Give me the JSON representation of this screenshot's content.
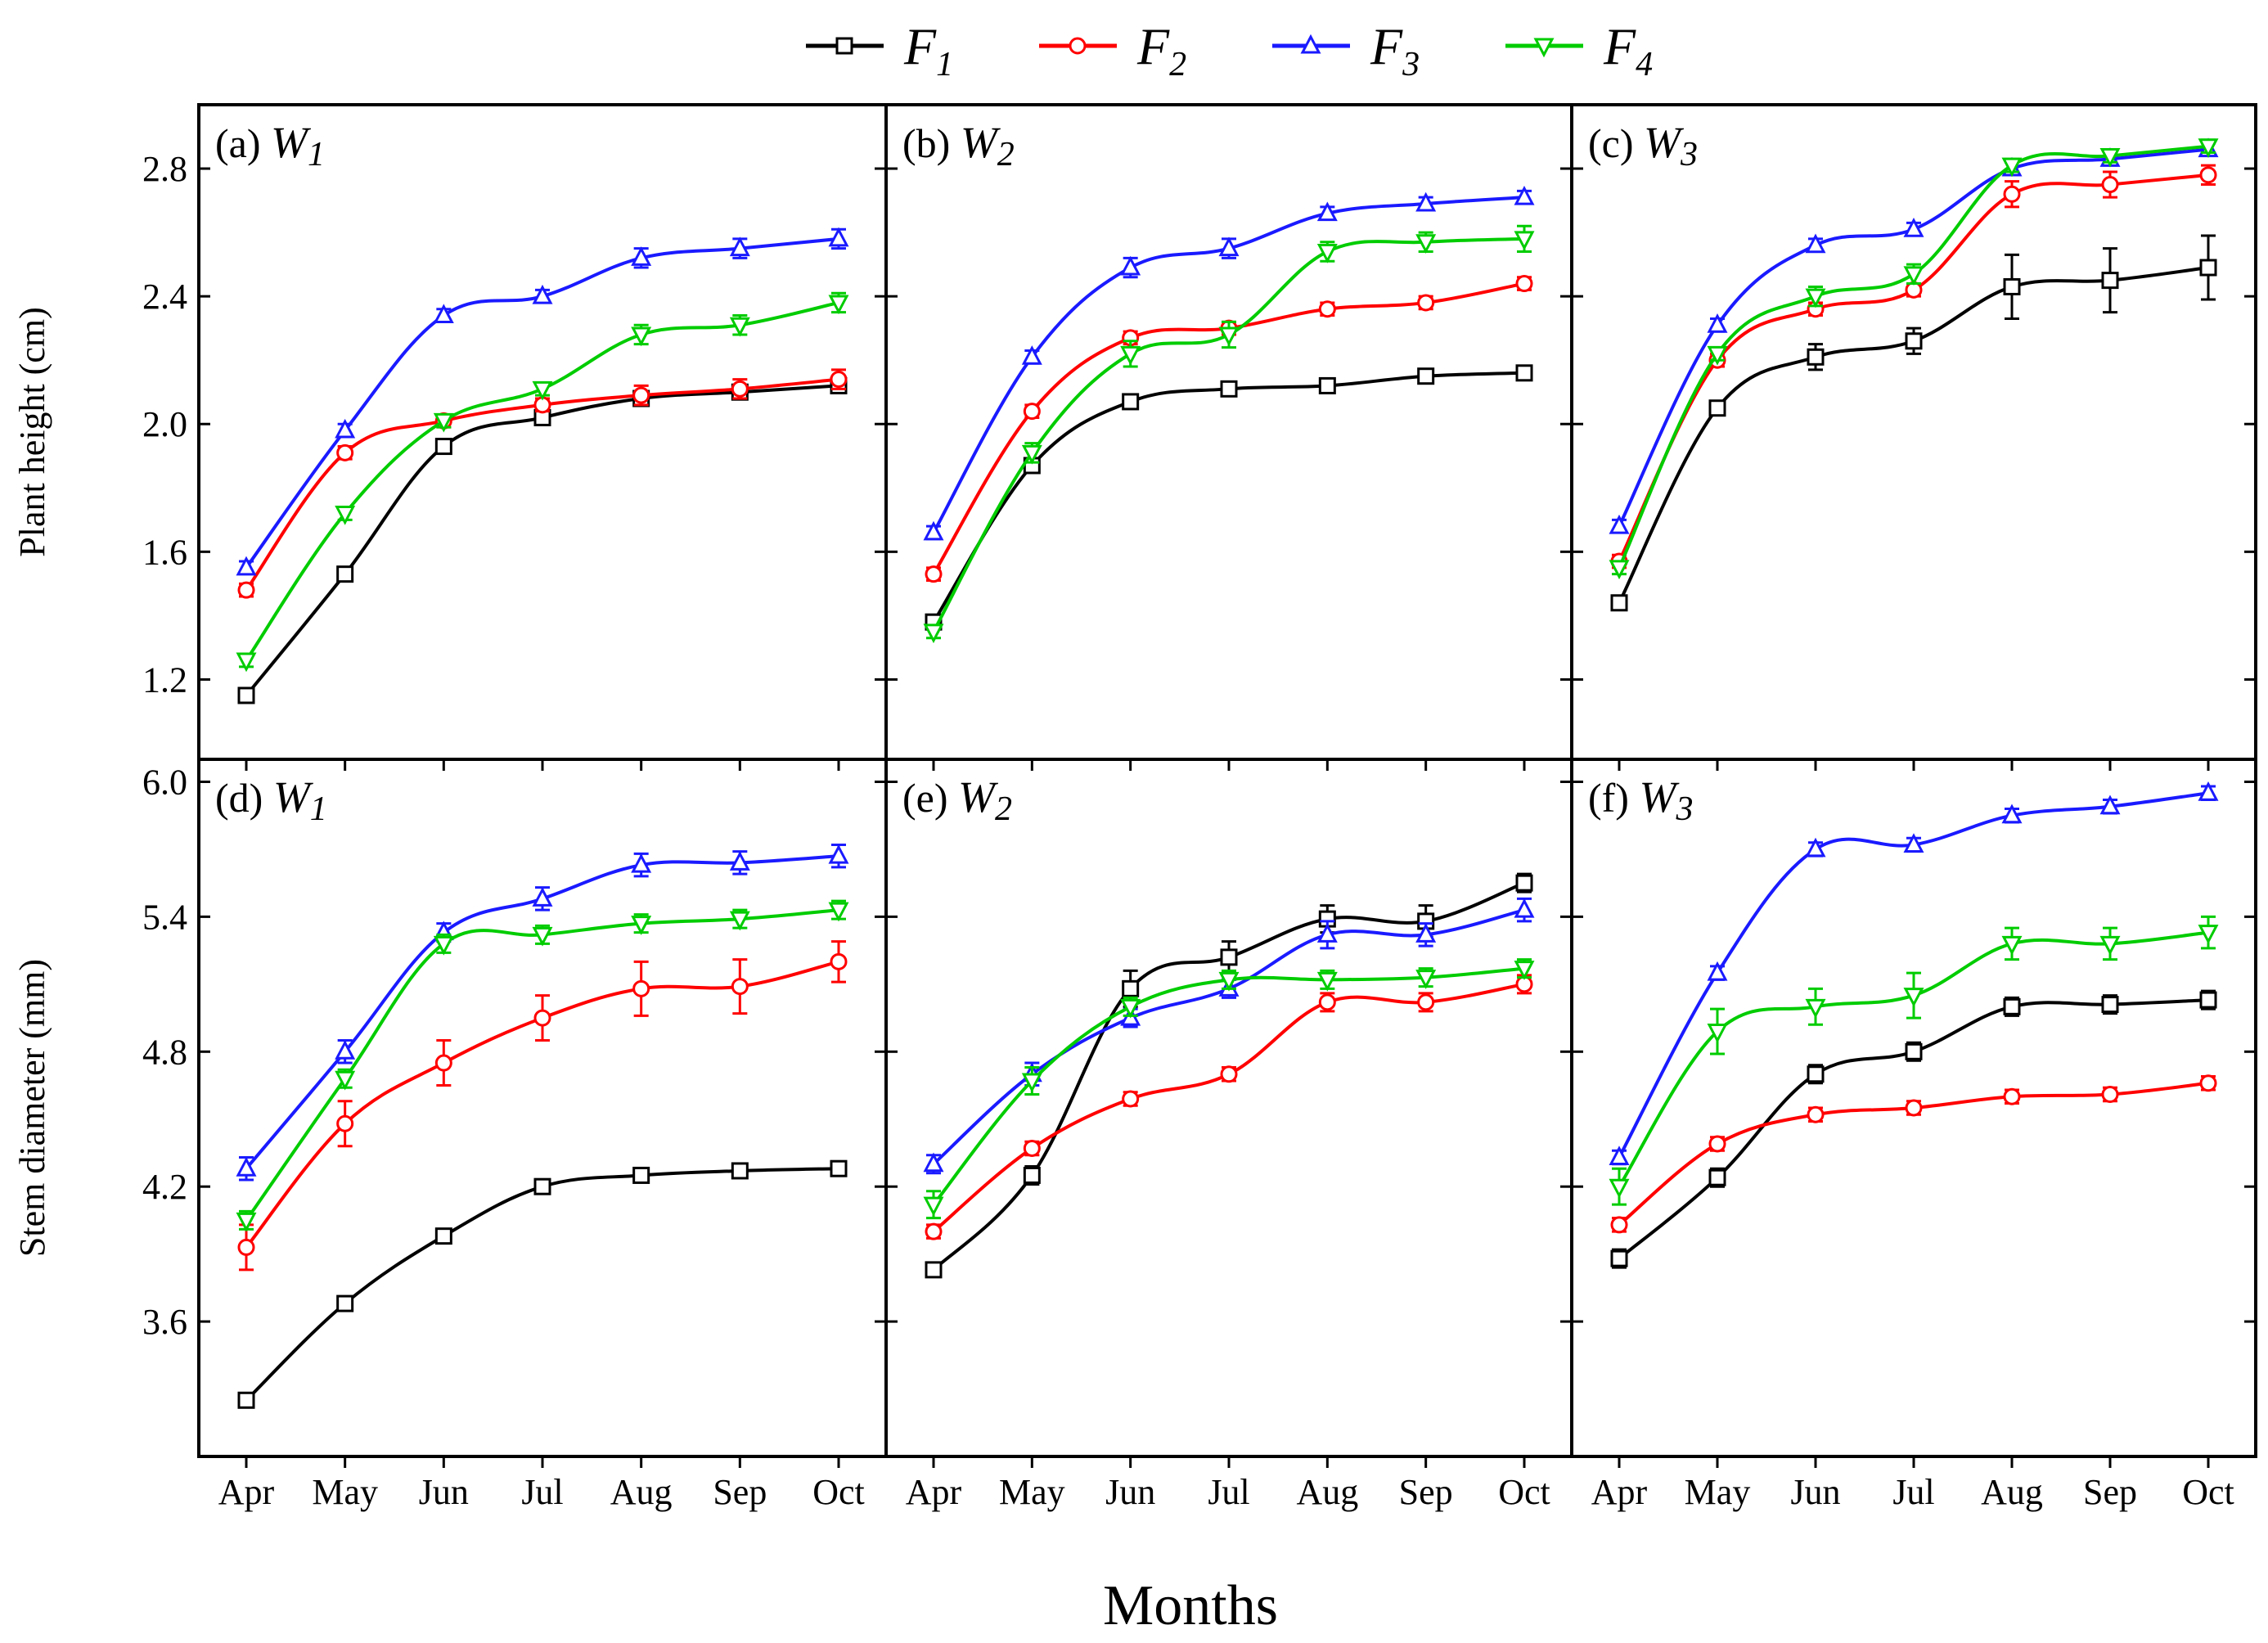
{
  "legend": [
    {
      "label": "F",
      "sub": "1",
      "color": "#000000",
      "marker": "square"
    },
    {
      "label": "F",
      "sub": "2",
      "color": "#ff0000",
      "marker": "circle"
    },
    {
      "label": "F",
      "sub": "3",
      "color": "#1a1aff",
      "marker": "triangle-up"
    },
    {
      "label": "F",
      "sub": "4",
      "color": "#00cc00",
      "marker": "triangle-down"
    }
  ],
  "x_axis_title": "Months",
  "chart_data": [
    {
      "type": "line",
      "panel": "(a)",
      "w": "W",
      "wsub": "1",
      "ylabel": "Plant height (cm)",
      "ylim": [
        0.95,
        3.0
      ],
      "yticks": [
        "1.2",
        "1.6",
        "2.0",
        "2.4",
        "2.8"
      ],
      "categories": [
        "Apr",
        "May",
        "Jun",
        "Jul",
        "Aug",
        "Sep",
        "Oct"
      ],
      "series": [
        {
          "name": "F1",
          "values": [
            1.15,
            1.53,
            1.93,
            2.02,
            2.08,
            2.1,
            2.12
          ],
          "errors": [
            0.02,
            0.02,
            0.02,
            0.02,
            0.02,
            0.02,
            0.02
          ]
        },
        {
          "name": "F2",
          "values": [
            1.48,
            1.91,
            2.01,
            2.06,
            2.09,
            2.11,
            2.14
          ],
          "errors": [
            0.02,
            0.02,
            0.02,
            0.02,
            0.03,
            0.03,
            0.03
          ]
        },
        {
          "name": "F3",
          "values": [
            1.55,
            1.98,
            2.34,
            2.4,
            2.52,
            2.55,
            2.58
          ],
          "errors": [
            0.02,
            0.02,
            0.02,
            0.02,
            0.03,
            0.03,
            0.03
          ]
        },
        {
          "name": "F4",
          "values": [
            1.26,
            1.72,
            2.01,
            2.11,
            2.28,
            2.31,
            2.38
          ],
          "errors": [
            0.02,
            0.02,
            0.02,
            0.02,
            0.03,
            0.03,
            0.03
          ]
        }
      ]
    },
    {
      "type": "line",
      "panel": "(b)",
      "w": "W",
      "wsub": "2",
      "ylabel": "",
      "ylim": [
        0.95,
        3.0
      ],
      "yticks": [
        "1.2",
        "1.6",
        "2.0",
        "2.4",
        "2.8"
      ],
      "categories": [
        "Apr",
        "May",
        "Jun",
        "Jul",
        "Aug",
        "Sep",
        "Oct"
      ],
      "series": [
        {
          "name": "F1",
          "values": [
            1.38,
            1.87,
            2.07,
            2.11,
            2.12,
            2.15,
            2.16
          ],
          "errors": [
            0.02,
            0.02,
            0.02,
            0.02,
            0.02,
            0.02,
            0.02
          ]
        },
        {
          "name": "F2",
          "values": [
            1.53,
            2.04,
            2.27,
            2.3,
            2.36,
            2.38,
            2.44
          ],
          "errors": [
            0.02,
            0.02,
            0.02,
            0.02,
            0.02,
            0.02,
            0.02
          ]
        },
        {
          "name": "F3",
          "values": [
            1.66,
            2.21,
            2.49,
            2.55,
            2.66,
            2.69,
            2.71
          ],
          "errors": [
            0.02,
            0.02,
            0.03,
            0.03,
            0.02,
            0.02,
            0.02
          ]
        },
        {
          "name": "F4",
          "values": [
            1.35,
            1.91,
            2.22,
            2.28,
            2.54,
            2.57,
            2.58
          ],
          "errors": [
            0.02,
            0.03,
            0.04,
            0.04,
            0.03,
            0.03,
            0.04
          ]
        }
      ]
    },
    {
      "type": "line",
      "panel": "(c)",
      "w": "W",
      "wsub": "3",
      "ylabel": "",
      "ylim": [
        0.95,
        3.0
      ],
      "yticks": [
        "1.2",
        "1.6",
        "2.0",
        "2.4",
        "2.8"
      ],
      "categories": [
        "Apr",
        "May",
        "Jun",
        "Jul",
        "Aug",
        "Sep",
        "Oct"
      ],
      "series": [
        {
          "name": "F1",
          "values": [
            1.44,
            2.05,
            2.21,
            2.26,
            2.43,
            2.45,
            2.49
          ],
          "errors": [
            0.02,
            0.02,
            0.04,
            0.04,
            0.1,
            0.1,
            0.1
          ]
        },
        {
          "name": "F2",
          "values": [
            1.57,
            2.2,
            2.36,
            2.42,
            2.72,
            2.75,
            2.78
          ],
          "errors": [
            0.02,
            0.02,
            0.02,
            0.02,
            0.04,
            0.04,
            0.03
          ]
        },
        {
          "name": "F3",
          "values": [
            1.68,
            2.31,
            2.56,
            2.61,
            2.8,
            2.83,
            2.86
          ],
          "errors": [
            0.02,
            0.02,
            0.02,
            0.02,
            0.02,
            0.02,
            0.02
          ]
        },
        {
          "name": "F4",
          "values": [
            1.55,
            2.22,
            2.4,
            2.47,
            2.81,
            2.84,
            2.87
          ],
          "errors": [
            0.02,
            0.02,
            0.03,
            0.03,
            0.02,
            0.02,
            0.02
          ]
        }
      ]
    },
    {
      "type": "line",
      "panel": "(d)",
      "w": "W",
      "wsub": "1",
      "ylabel": "Stem diameter (mm)",
      "ylim": [
        3.0,
        6.1
      ],
      "yticks": [
        "3.6",
        "4.2",
        "4.8",
        "5.4",
        "6.0"
      ],
      "categories": [
        "Apr",
        "May",
        "Jun",
        "Jul",
        "Aug",
        "Sep",
        "Oct"
      ],
      "series": [
        {
          "name": "F1",
          "values": [
            3.25,
            3.68,
            3.98,
            4.2,
            4.25,
            4.27,
            4.28
          ],
          "errors": [
            0.03,
            0.03,
            0.03,
            0.03,
            0.03,
            0.03,
            0.03
          ]
        },
        {
          "name": "F2",
          "values": [
            3.93,
            4.48,
            4.75,
            4.95,
            5.08,
            5.09,
            5.2
          ],
          "errors": [
            0.1,
            0.1,
            0.1,
            0.1,
            0.12,
            0.12,
            0.09
          ]
        },
        {
          "name": "F3",
          "values": [
            4.28,
            4.8,
            5.33,
            5.48,
            5.63,
            5.64,
            5.67
          ],
          "errors": [
            0.05,
            0.05,
            0.04,
            0.05,
            0.05,
            0.05,
            0.05
          ]
        },
        {
          "name": "F4",
          "values": [
            4.05,
            4.68,
            5.28,
            5.32,
            5.37,
            5.39,
            5.43
          ],
          "errors": [
            0.04,
            0.04,
            0.04,
            0.04,
            0.04,
            0.04,
            0.04
          ]
        }
      ]
    },
    {
      "type": "line",
      "panel": "(e)",
      "w": "W",
      "wsub": "2",
      "ylabel": "",
      "ylim": [
        3.0,
        6.1
      ],
      "yticks": [
        "3.6",
        "4.2",
        "4.8",
        "5.4",
        "6.0"
      ],
      "categories": [
        "Apr",
        "May",
        "Jun",
        "Jul",
        "Aug",
        "Sep",
        "Oct"
      ],
      "series": [
        {
          "name": "F1",
          "values": [
            3.83,
            4.25,
            5.08,
            5.22,
            5.39,
            5.38,
            5.55
          ],
          "errors": [
            0.03,
            0.04,
            0.08,
            0.07,
            0.06,
            0.07,
            0.04
          ]
        },
        {
          "name": "F2",
          "values": [
            4.0,
            4.37,
            4.59,
            4.7,
            5.02,
            5.02,
            5.1
          ],
          "errors": [
            0.03,
            0.03,
            0.03,
            0.03,
            0.04,
            0.04,
            0.04
          ]
        },
        {
          "name": "F3",
          "values": [
            4.3,
            4.7,
            4.95,
            5.08,
            5.32,
            5.32,
            5.43
          ],
          "errors": [
            0.04,
            0.05,
            0.04,
            0.04,
            0.06,
            0.05,
            0.05
          ]
        },
        {
          "name": "F4",
          "values": [
            4.12,
            4.67,
            5.0,
            5.12,
            5.12,
            5.13,
            5.17
          ],
          "errors": [
            0.06,
            0.06,
            0.04,
            0.04,
            0.04,
            0.04,
            0.04
          ]
        }
      ]
    },
    {
      "type": "line",
      "panel": "(f)",
      "w": "W",
      "wsub": "3",
      "ylabel": "",
      "ylim": [
        3.0,
        6.1
      ],
      "yticks": [
        "3.6",
        "4.2",
        "4.8",
        "5.4",
        "6.0"
      ],
      "categories": [
        "Apr",
        "May",
        "Jun",
        "Jul",
        "Aug",
        "Sep",
        "Oct"
      ],
      "series": [
        {
          "name": "F1",
          "values": [
            3.88,
            4.24,
            4.7,
            4.8,
            5.0,
            5.01,
            5.03
          ],
          "errors": [
            0.04,
            0.04,
            0.04,
            0.04,
            0.04,
            0.04,
            0.04
          ]
        },
        {
          "name": "F2",
          "values": [
            4.03,
            4.39,
            4.52,
            4.55,
            4.6,
            4.61,
            4.66
          ],
          "errors": [
            0.03,
            0.03,
            0.03,
            0.03,
            0.03,
            0.03,
            0.03
          ]
        },
        {
          "name": "F3",
          "values": [
            4.33,
            5.15,
            5.7,
            5.72,
            5.85,
            5.89,
            5.95
          ],
          "errors": [
            0.03,
            0.03,
            0.03,
            0.03,
            0.03,
            0.03,
            0.03
          ]
        },
        {
          "name": "F4",
          "values": [
            4.2,
            4.89,
            5.0,
            5.05,
            5.28,
            5.28,
            5.33
          ],
          "errors": [
            0.08,
            0.1,
            0.08,
            0.1,
            0.07,
            0.07,
            0.07
          ]
        }
      ]
    }
  ]
}
